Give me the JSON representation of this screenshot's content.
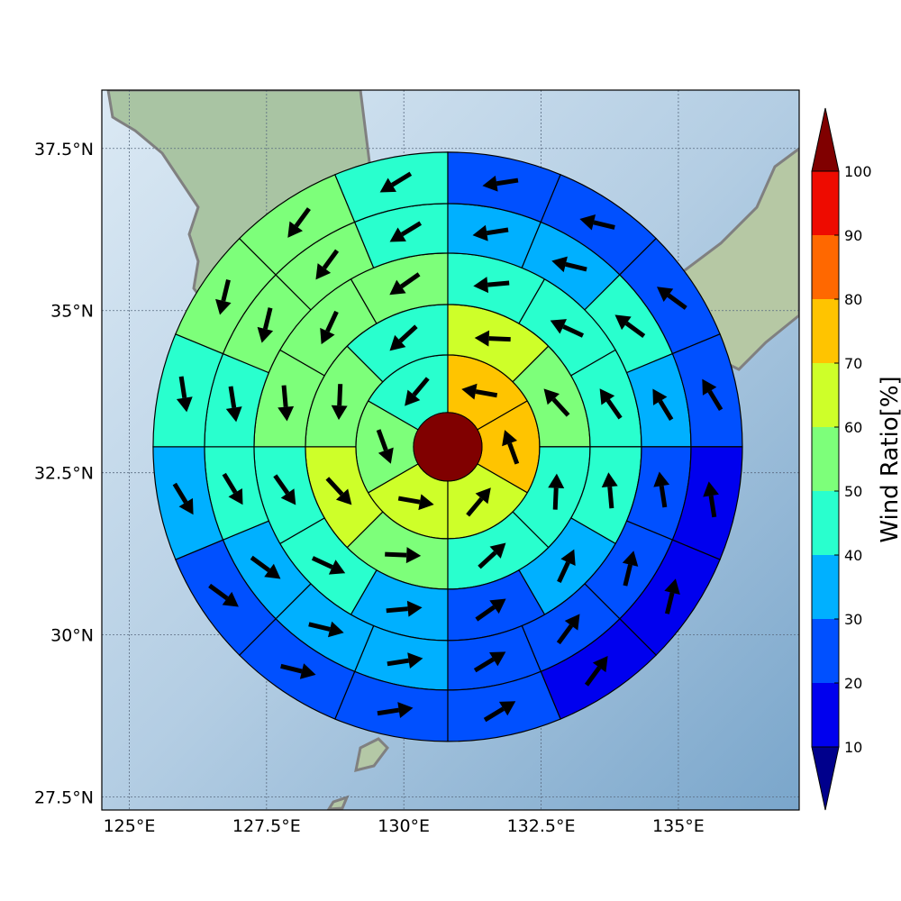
{
  "chart_data": {
    "type": "heatmap",
    "title": "",
    "xlabel": "",
    "ylabel": "",
    "map_extent": {
      "lon": [
        124.5,
        137.2
      ],
      "lat": [
        27.3,
        38.4
      ]
    },
    "center": {
      "lon": 130.8,
      "lat": 32.9
    },
    "grid": true,
    "x_ticks": [
      "125°E",
      "127.5°E",
      "130°E",
      "132.5°E",
      "135°E"
    ],
    "y_ticks": [
      "37.5°N",
      "35°N",
      "32.5°N",
      "30°N",
      "27.5°N"
    ],
    "rings": [
      {
        "ring": 1,
        "sectors": 6,
        "values": [
          75,
          78,
          68,
          63,
          56,
          48
        ]
      },
      {
        "ring": 2,
        "sectors": 8,
        "values": [
          62,
          55,
          45,
          47,
          58,
          68,
          55,
          48
        ]
      },
      {
        "ring": 3,
        "sectors": 12,
        "values": [
          46,
          46,
          47,
          41,
          35,
          26,
          35,
          43,
          46,
          55,
          56,
          57
        ]
      },
      {
        "ring": 4,
        "sectors": 16,
        "values": [
          33,
          38,
          42,
          34,
          28,
          28,
          27,
          28,
          32,
          34,
          35,
          43,
          42,
          53,
          52,
          45
        ]
      },
      {
        "ring": 5,
        "sectors": 16,
        "values": [
          25,
          25,
          25,
          23,
          18,
          15,
          18,
          23,
          25,
          28,
          28,
          35,
          45,
          54,
          55,
          45
        ]
      }
    ],
    "colorbar": {
      "label": "Wind Ratio[%]",
      "ticks": [
        "10",
        "20",
        "30",
        "40",
        "50",
        "60",
        "70",
        "80",
        "90",
        "100"
      ],
      "colors": [
        "#00008c",
        "#0000ee",
        "#0050ff",
        "#00b0ff",
        "#29ffce",
        "#7dff7a",
        "#ceff29",
        "#ffc400",
        "#ff6800",
        "#ee0b00",
        "#800000"
      ]
    }
  }
}
